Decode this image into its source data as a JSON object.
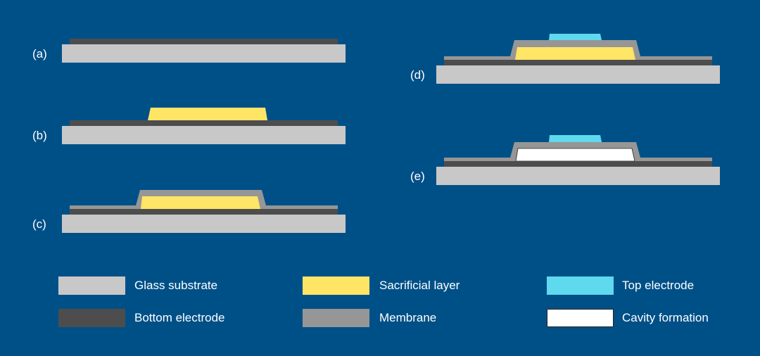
{
  "colors": {
    "background": "#005088",
    "glass_substrate": "#c8c8c8",
    "bottom_electrode": "#4d4d4d",
    "sacrificial_layer": "#ffe566",
    "membrane": "#969696",
    "top_electrode": "#5fd9ee",
    "cavity": "#ffffff"
  },
  "steps": [
    {
      "label": "(a)"
    },
    {
      "label": "(b)"
    },
    {
      "label": "(c)"
    },
    {
      "label": "(d)"
    },
    {
      "label": "(e)"
    }
  ],
  "legend": [
    {
      "label": "Glass substrate",
      "color": "#c8c8c8"
    },
    {
      "label": "Bottom electrode",
      "color": "#4d4d4d"
    },
    {
      "label": "Sacrificial layer",
      "color": "#ffe566"
    },
    {
      "label": "Membrane",
      "color": "#969696"
    },
    {
      "label": "Top electrode",
      "color": "#5fd9ee"
    },
    {
      "label": "Cavity formation",
      "color": "#ffffff"
    }
  ]
}
